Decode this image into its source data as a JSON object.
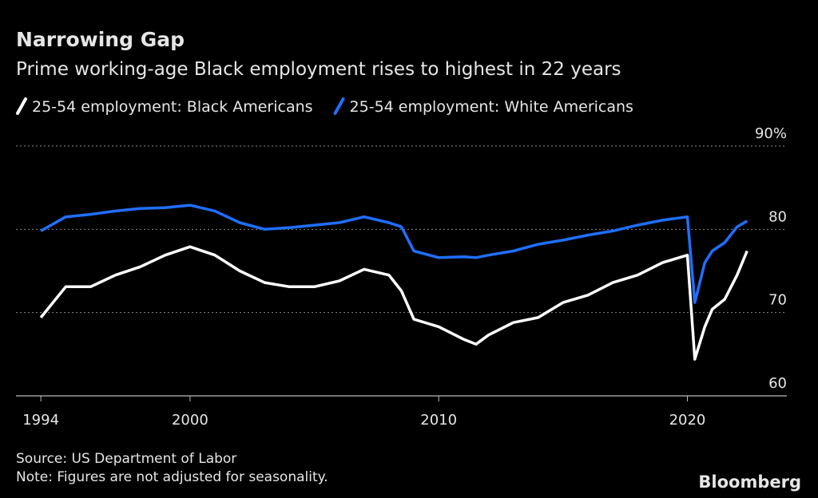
{
  "chart_data": {
    "type": "line",
    "title": "Narrowing Gap",
    "subtitle": "Prime working-age Black employment rises to highest in 22 years",
    "x": [
      1994,
      1995,
      1996,
      1997,
      1998,
      1999,
      2000,
      2001,
      2002,
      2003,
      2004,
      2005,
      2006,
      2007,
      2008,
      2008.5,
      2009,
      2010,
      2011,
      2011.5,
      2012,
      2013,
      2014,
      2015,
      2016,
      2017,
      2018,
      2019,
      2020,
      2020.3,
      2020.7,
      2021,
      2021.5,
      2022,
      2022.4
    ],
    "series": [
      {
        "name": "25-54 employment: Black Americans",
        "color": "#ffffff",
        "values": [
          69.4,
          73.1,
          73.1,
          74.5,
          75.5,
          76.9,
          77.9,
          76.9,
          75,
          73.6,
          73.1,
          73.1,
          73.8,
          75.2,
          74.5,
          72.6,
          69.2,
          68.3,
          66.8,
          66.2,
          67.3,
          68.8,
          69.4,
          71.2,
          72.1,
          73.6,
          74.5,
          76,
          76.9,
          64.4,
          68.3,
          70.4,
          71.6,
          74.5,
          77.4
        ]
      },
      {
        "name": "25-54 employment: White Americans",
        "color": "#1f6fff",
        "values": [
          79.8,
          81.5,
          81.8,
          82.2,
          82.5,
          82.6,
          82.9,
          82.2,
          80.8,
          80,
          80.2,
          80.5,
          80.8,
          81.5,
          80.8,
          80.3,
          77.4,
          76.6,
          76.7,
          76.6,
          76.9,
          77.4,
          78.2,
          78.7,
          79.3,
          79.8,
          80.5,
          81.1,
          81.5,
          71.2,
          76,
          77.4,
          78.4,
          80.3,
          81.0
        ]
      }
    ],
    "xlim": [
      1993,
      2024
    ],
    "xticks": [
      1994,
      2000,
      2010,
      2020
    ],
    "ylim": [
      60,
      90
    ],
    "yticks": [
      60,
      70,
      80,
      {
        "value": 90,
        "label": "90%"
      }
    ],
    "grid": true,
    "source": "Source: US Department of Labor",
    "note": "Note: Figures are not adjusted for seasonality.",
    "brand": "Bloomberg"
  }
}
